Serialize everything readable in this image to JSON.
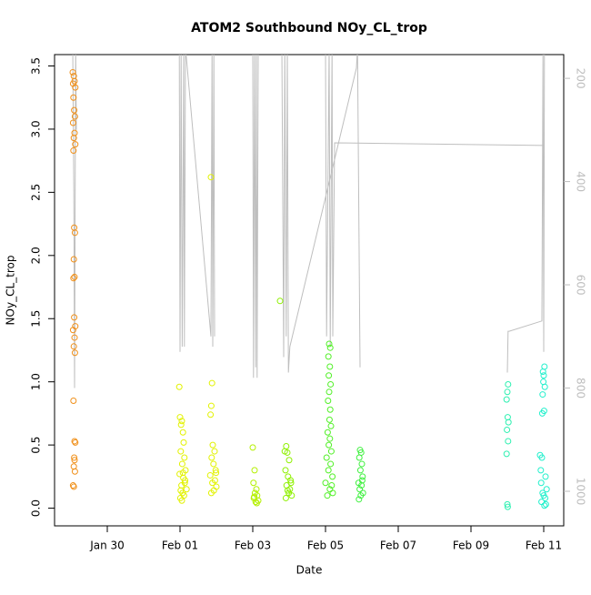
{
  "chart_data": {
    "type": "scatter",
    "title": "ATOM2 Southbound NOy_CL_trop",
    "x_label": "Date",
    "y_label": "NOy_CL_trop",
    "xlim": [
      28.55,
      42.55
    ],
    "xticks": [
      {
        "value": 30,
        "label": "Jan 30"
      },
      {
        "value": 32,
        "label": "Feb 01"
      },
      {
        "value": 34,
        "label": "Feb 03"
      },
      {
        "value": 36,
        "label": "Feb 05"
      },
      {
        "value": 38,
        "label": "Feb 07"
      },
      {
        "value": 40,
        "label": "Feb 09"
      },
      {
        "value": 42,
        "label": "Feb 11"
      }
    ],
    "ylim": [
      -0.14,
      3.59
    ],
    "yticks": [
      {
        "value": 0,
        "label": "0.0"
      },
      0.5,
      {
        "value": 1,
        "label": "1.0"
      },
      1.5,
      {
        "value": 2,
        "label": "2.0"
      },
      2.5,
      {
        "value": 3,
        "label": "3.0"
      },
      3.5
    ],
    "y2lim": [
      1067,
      154
    ],
    "y2ticks": [
      200,
      400,
      600,
      800,
      1000
    ],
    "series": [
      {
        "color": "#f0901a",
        "x": [
          29.05,
          29.08,
          29.1,
          29.06,
          29.12,
          29.07,
          29.09,
          29.11,
          29.06,
          29.1,
          29.08,
          29.12,
          29.07,
          29.09,
          29.11,
          29.08,
          29.1,
          29.07,
          29.09,
          29.12,
          29.06,
          29.1,
          29.08,
          29.11,
          29.07,
          29.1,
          29.12,
          29.09,
          29.1,
          29.08,
          29.11,
          29.06,
          29.08
        ],
        "values": [
          3.45,
          3.42,
          3.38,
          3.36,
          3.33,
          3.25,
          3.15,
          3.1,
          3.05,
          2.97,
          2.93,
          2.88,
          2.83,
          2.22,
          2.18,
          1.97,
          1.83,
          1.82,
          1.51,
          1.44,
          1.41,
          1.35,
          1.28,
          1.23,
          0.85,
          0.53,
          0.52,
          0.4,
          0.38,
          0.33,
          0.29,
          0.18,
          0.17
        ]
      },
      {
        "color": "#e2f200",
        "x": [
          31.98,
          32.0,
          32.05,
          32.03,
          32.08,
          32.1,
          32.02,
          32.12,
          32.06,
          32.15,
          31.99,
          32.09,
          32.13,
          32.04,
          32.18,
          32.07,
          32.11,
          32.01,
          32.05,
          32.14,
          32.08,
          32.02
        ],
        "values": [
          0.96,
          0.72,
          0.69,
          0.66,
          0.6,
          0.52,
          0.45,
          0.4,
          0.35,
          0.3,
          0.27,
          0.24,
          0.2,
          0.18,
          0.15,
          0.12,
          0.1,
          0.08,
          0.06,
          0.22,
          0.28,
          0.14
        ]
      },
      {
        "color": "#e2f200",
        "x": [
          32.85,
          32.88,
          32.86,
          32.84,
          32.9,
          32.95,
          32.87,
          32.92,
          32.98,
          32.83,
          32.96,
          32.89,
          33.0,
          32.93,
          32.86,
          32.99
        ],
        "values": [
          2.62,
          0.99,
          0.81,
          0.74,
          0.5,
          0.45,
          0.4,
          0.35,
          0.3,
          0.26,
          0.22,
          0.2,
          0.17,
          0.14,
          0.12,
          0.28
        ]
      },
      {
        "color": "#b4f000",
        "x": [
          34.0,
          34.05,
          34.02,
          34.1,
          34.06,
          34.12,
          34.03,
          34.15,
          34.08,
          34.11,
          34.04
        ],
        "values": [
          0.48,
          0.3,
          0.2,
          0.15,
          0.12,
          0.1,
          0.08,
          0.06,
          0.05,
          0.04,
          0.09
        ]
      },
      {
        "color": "#8ef000",
        "x": [
          34.75,
          34.92,
          34.88,
          34.95,
          35.0,
          34.9,
          34.97,
          35.05,
          34.93,
          35.02,
          34.99,
          35.07,
          34.91,
          35.04,
          34.96
        ],
        "values": [
          1.64,
          0.49,
          0.45,
          0.44,
          0.38,
          0.3,
          0.25,
          0.2,
          0.18,
          0.15,
          0.12,
          0.1,
          0.08,
          0.22,
          0.14
        ]
      },
      {
        "color": "#52f028",
        "x": [
          36.1,
          36.13,
          36.08,
          36.12,
          36.09,
          36.14,
          36.1,
          36.07,
          36.13,
          36.11,
          36.15,
          36.06,
          36.12,
          36.09,
          36.16,
          36.03,
          36.14,
          36.08,
          36.19,
          36.0,
          36.12,
          36.2,
          36.05,
          36.17
        ],
        "values": [
          1.3,
          1.27,
          1.2,
          1.12,
          1.05,
          0.98,
          0.92,
          0.85,
          0.78,
          0.7,
          0.65,
          0.6,
          0.55,
          0.5,
          0.45,
          0.4,
          0.35,
          0.3,
          0.25,
          0.2,
          0.15,
          0.12,
          0.1,
          0.18
        ]
      },
      {
        "color": "#40f040",
        "x": [
          36.95,
          36.98,
          36.93,
          37.0,
          36.96,
          37.02,
          36.91,
          36.99,
          36.94,
          37.03,
          36.97,
          36.92,
          37.01
        ],
        "values": [
          0.46,
          0.44,
          0.4,
          0.35,
          0.3,
          0.25,
          0.2,
          0.18,
          0.15,
          0.12,
          0.1,
          0.07,
          0.22
        ]
      },
      {
        "color": "#2cf0b0",
        "x": [
          41.02,
          41.0,
          40.98,
          41.01,
          41.03,
          40.99,
          41.02,
          40.98,
          41.0,
          41.01
        ],
        "values": [
          0.98,
          0.92,
          0.86,
          0.72,
          0.68,
          0.62,
          0.53,
          0.43,
          0.03,
          0.01
        ]
      },
      {
        "color": "#22f0cc",
        "x": [
          42.02,
          41.98,
          42.0,
          41.99,
          42.03,
          41.97,
          42.01,
          41.96,
          41.9,
          41.95,
          41.92,
          42.05,
          41.93,
          42.08,
          41.97,
          42.0,
          42.04,
          41.94,
          42.06,
          42.02
        ],
        "values": [
          1.12,
          1.08,
          1.05,
          1.0,
          0.96,
          0.9,
          0.77,
          0.75,
          0.42,
          0.4,
          0.3,
          0.25,
          0.2,
          0.15,
          0.12,
          0.1,
          0.08,
          0.05,
          0.03,
          0.02
        ]
      },
      {
        "color": "#bebebe",
        "axis": "y2",
        "x": [
          29.05,
          29.08,
          29.1,
          29.13,
          29.15,
          null,
          31.98,
          32.0,
          32.03,
          32.06,
          32.08,
          32.1,
          32.12,
          32.15,
          32.85,
          32.88,
          32.9,
          32.93,
          32.95,
          null,
          34.0,
          34.02,
          34.05,
          34.08,
          34.1,
          34.12,
          34.15,
          34.8,
          34.85,
          34.88,
          34.92,
          34.95,
          34.98,
          35.02,
          36.85,
          36.88,
          36.95,
          null,
          36.0,
          36.03,
          36.1,
          36.13,
          36.18,
          36.2,
          36.25,
          42.0,
          null,
          41.0,
          41.02,
          41.05,
          41.95,
          41.98,
          42.0,
          42.02
        ],
        "values": [
          140,
          420,
          800,
          140,
          300,
          null,
          140,
          730,
          140,
          720,
          470,
          140,
          720,
          140,
          700,
          140,
          720,
          140,
          700,
          null,
          140,
          780,
          140,
          760,
          140,
          780,
          140,
          140,
          740,
          140,
          700,
          140,
          770,
          720,
          180,
          140,
          760,
          null,
          140,
          700,
          140,
          720,
          140,
          700,
          325,
          330,
          null,
          770,
          690,
          690,
          670,
          140,
          730,
          140
        ]
      }
    ]
  }
}
